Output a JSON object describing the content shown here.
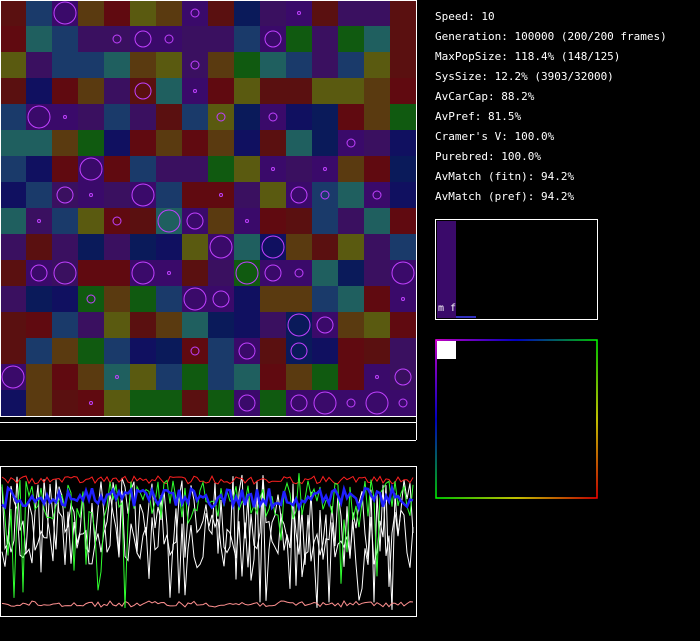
{
  "stats": [
    "Speed: 10",
    "Generation: 100000 (200/200 frames)",
    "MaxPopSize: 118.4% (148/125)",
    "SysSize: 12.2% (3903/32000)",
    "AvCarCap: 88.2%",
    "AvPref: 81.5%",
    "Cramer's V: 100.0%",
    "Purebred: 100.0%",
    "AvMatch (fitn): 94.2%",
    "AvMatch (pref): 94.2%"
  ],
  "histogram": {
    "label": "m f"
  }
}
